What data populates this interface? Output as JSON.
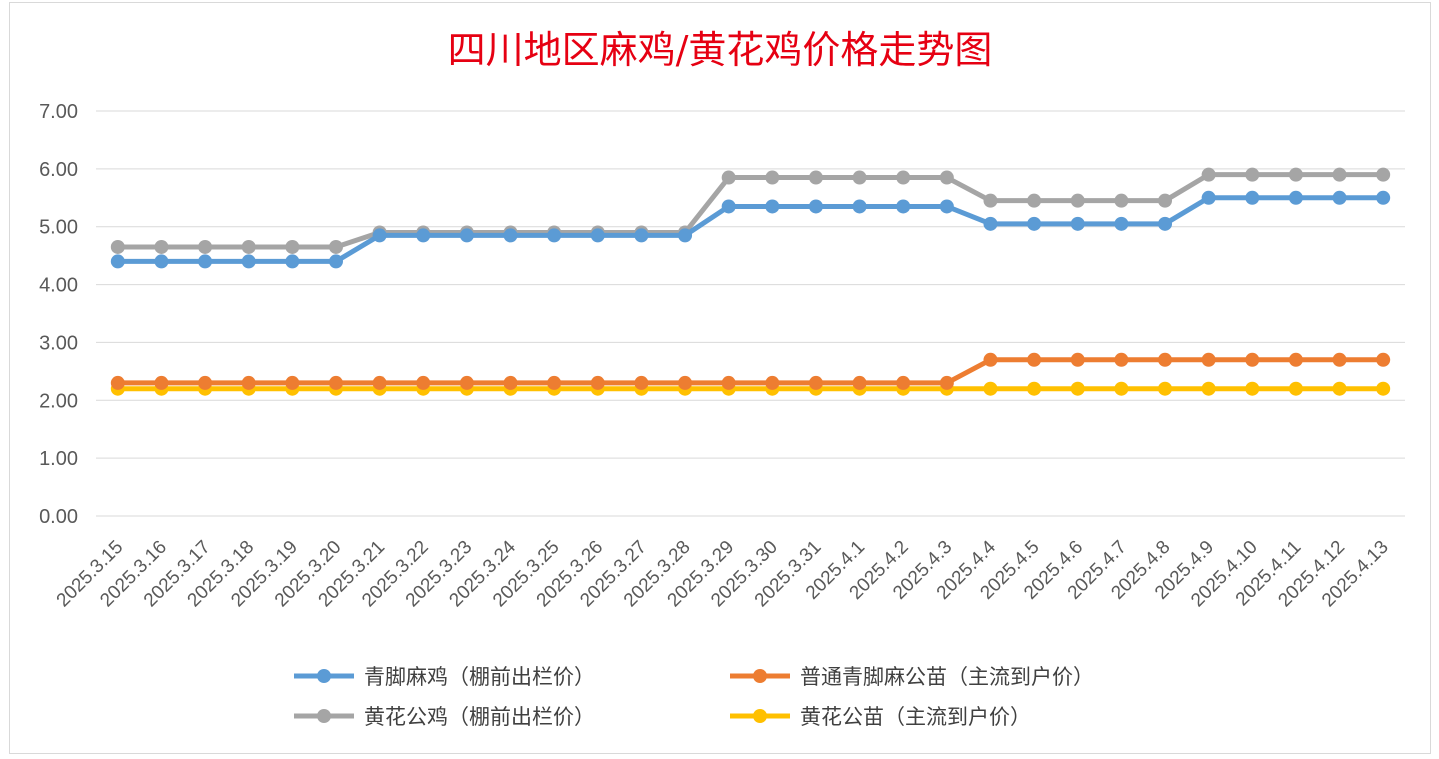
{
  "chart_data": {
    "type": "line",
    "title": "四川地区麻鸡/黄花鸡价格走势图",
    "xlabel": "",
    "ylabel": "",
    "ylim": [
      0,
      7
    ],
    "yticks": [
      "0.00",
      "1.00",
      "2.00",
      "3.00",
      "4.00",
      "5.00",
      "6.00",
      "7.00"
    ],
    "grid": true,
    "legend_position": "bottom",
    "categories": [
      "2025.3.15",
      "2025.3.16",
      "2025.3.17",
      "2025.3.18",
      "2025.3.19",
      "2025.3.20",
      "2025.3.21",
      "2025.3.22",
      "2025.3.23",
      "2025.3.24",
      "2025.3.25",
      "2025.3.26",
      "2025.3.27",
      "2025.3.28",
      "2025.3.29",
      "2025.3.30",
      "2025.3.31",
      "2025.4.1",
      "2025.4.2",
      "2025.4.3",
      "2025.4.4",
      "2025.4.5",
      "2025.4.6",
      "2025.4.7",
      "2025.4.8",
      "2025.4.9",
      "2025.4.10",
      "2025.4.11",
      "2025.4.12",
      "2025.4.13"
    ],
    "series": [
      {
        "name": "青脚麻鸡（棚前出栏价）",
        "color": "#5b9bd5",
        "values": [
          4.4,
          4.4,
          4.4,
          4.4,
          4.4,
          4.4,
          4.85,
          4.85,
          4.85,
          4.85,
          4.85,
          4.85,
          4.85,
          4.85,
          5.35,
          5.35,
          5.35,
          5.35,
          5.35,
          5.35,
          5.05,
          5.05,
          5.05,
          5.05,
          5.05,
          5.5,
          5.5,
          5.5,
          5.5,
          5.5
        ]
      },
      {
        "name": "普通青脚麻公苗（主流到户价）",
        "color": "#ed7d31",
        "values": [
          2.3,
          2.3,
          2.3,
          2.3,
          2.3,
          2.3,
          2.3,
          2.3,
          2.3,
          2.3,
          2.3,
          2.3,
          2.3,
          2.3,
          2.3,
          2.3,
          2.3,
          2.3,
          2.3,
          2.3,
          2.7,
          2.7,
          2.7,
          2.7,
          2.7,
          2.7,
          2.7,
          2.7,
          2.7,
          2.7
        ]
      },
      {
        "name": "黄花公鸡（棚前出栏价）",
        "color": "#a5a5a5",
        "values": [
          4.65,
          4.65,
          4.65,
          4.65,
          4.65,
          4.65,
          4.9,
          4.9,
          4.9,
          4.9,
          4.9,
          4.9,
          4.9,
          4.9,
          5.85,
          5.85,
          5.85,
          5.85,
          5.85,
          5.85,
          5.45,
          5.45,
          5.45,
          5.45,
          5.45,
          5.9,
          5.9,
          5.9,
          5.9,
          5.9
        ]
      },
      {
        "name": "黄花公苗（主流到户价）",
        "color": "#ffc000",
        "values": [
          2.2,
          2.2,
          2.2,
          2.2,
          2.2,
          2.2,
          2.2,
          2.2,
          2.2,
          2.2,
          2.2,
          2.2,
          2.2,
          2.2,
          2.2,
          2.2,
          2.2,
          2.2,
          2.2,
          2.2,
          2.2,
          2.2,
          2.2,
          2.2,
          2.2,
          2.2,
          2.2,
          2.2,
          2.2,
          2.2
        ]
      }
    ],
    "draw_order": [
      3,
      1,
      2,
      0
    ]
  }
}
